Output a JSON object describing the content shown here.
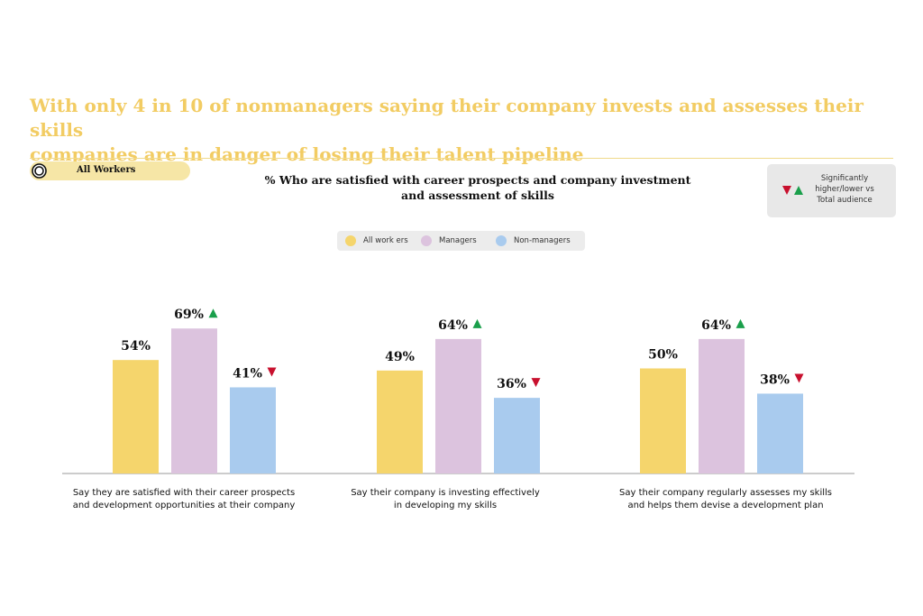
{
  "headline": {
    "line1": "With only 4 in 10 of nonmanagers saying their company invests and assesses their skills",
    "line2": "companies are in danger of losing their talent pipeline"
  },
  "audience_pill": {
    "label": "All Workers"
  },
  "significance_box": {
    "line1": "Significantly",
    "line2": "higher/lower vs",
    "line3": "Total audience"
  },
  "colors": {
    "all_workers": "#f5d56c",
    "managers": "#dcc3de",
    "non_managers": "#a9cbee",
    "headline": "#f2cc63",
    "up": "#1a9f4b",
    "down": "#c8102e"
  },
  "chart_data": {
    "type": "bar",
    "title_line1": "% Who are satisfied with career prospects and company investment",
    "title_line2": "and assessment of skills",
    "ylim": [
      0,
      100
    ],
    "legend_position": "top-center",
    "series": [
      {
        "name": "All work ers",
        "values": [
          54,
          49,
          50
        ],
        "value_labels": [
          "54%",
          "49%",
          "50%"
        ],
        "significance": [
          "none",
          "none",
          "none"
        ]
      },
      {
        "name": "Managers",
        "values": [
          69,
          64,
          64
        ],
        "value_labels": [
          "69%",
          "64%",
          "64%"
        ],
        "significance": [
          "up",
          "up",
          "up"
        ]
      },
      {
        "name": "Non-managers",
        "values": [
          41,
          36,
          38
        ],
        "value_labels": [
          "41%",
          "36%",
          "38%"
        ],
        "significance": [
          "down",
          "down",
          "down"
        ]
      }
    ],
    "categories": [
      {
        "line1": "Say they are satisfied with their career prospects",
        "line2": "and development opportunities at their company"
      },
      {
        "line1": "Say their company is investing effectively",
        "line2": "in developing my skills"
      },
      {
        "line1": "Say their company regularly assesses my skills",
        "line2": "and helps them devise a development plan"
      }
    ]
  }
}
